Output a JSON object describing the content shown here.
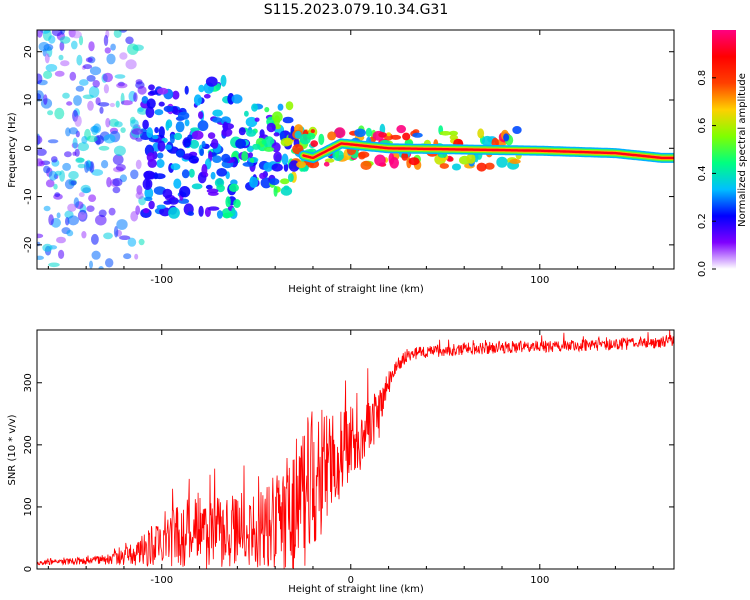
{
  "title": "S115.2023.079.10.34.G31",
  "chart_data": [
    {
      "type": "heatmap",
      "xlabel": "Height of straight line (km)",
      "ylabel": "Frequency (Hz)",
      "xlim": [
        -166,
        171
      ],
      "ylim": [
        -25,
        24.5
      ],
      "xticks": [
        -100,
        0,
        100
      ],
      "xtick_labels": [
        "-100",
        "",
        "100"
      ],
      "yticks": [
        -20,
        -10,
        0,
        10,
        20
      ],
      "ytick_labels": [
        "-20",
        "-10",
        "0",
        "10",
        "20"
      ],
      "grid": false,
      "colormap": [
        "#ffffff",
        "#7f00ff",
        "#0000ff",
        "#00bfff",
        "#00ff80",
        "#80ff00",
        "#ffd000",
        "#ff4000",
        "#ff0000",
        "#ff0080"
      ],
      "description_of_ridge": [
        {
          "x": -160,
          "freq": 0,
          "amp": 0.1
        },
        {
          "x": -100,
          "freq": 0,
          "amp": 0.3
        },
        {
          "x": -40,
          "freq": 0,
          "amp": 0.45
        },
        {
          "x": -20,
          "freq": -2,
          "amp": 0.8
        },
        {
          "x": -5,
          "freq": 1,
          "amp": 0.85
        },
        {
          "x": 20,
          "freq": 0,
          "amp": 0.9
        },
        {
          "x": 100,
          "freq": -0.5,
          "amp": 0.8
        },
        {
          "x": 140,
          "freq": -1,
          "amp": 0.9
        },
        {
          "x": 165,
          "freq": -2,
          "amp": 0.9
        }
      ]
    },
    {
      "type": "colorbar",
      "label": "Normalized spectral amplitude",
      "ticks": [
        0.0,
        0.2,
        0.4,
        0.6,
        0.8
      ],
      "tick_labels": [
        "0.0",
        "0.2",
        "0.4",
        "0.6",
        "0.8"
      ],
      "range": [
        0,
        1
      ]
    },
    {
      "type": "line",
      "xlabel": "Height of straight line (km)",
      "ylabel": "SNR (10 * v/v)",
      "xlim": [
        -166,
        171
      ],
      "ylim": [
        0,
        385
      ],
      "xticks": [
        -100,
        0,
        100
      ],
      "xtick_labels": [
        "-100",
        "0",
        "100"
      ],
      "yticks": [
        0,
        100,
        200,
        300
      ],
      "ytick_labels": [
        "0",
        "100",
        "200",
        "300"
      ],
      "grid": false,
      "series": [
        {
          "color": "#ff0000",
          "x": [
            -166,
            -150,
            -130,
            -120,
            -110,
            -100,
            -90,
            -80,
            -70,
            -60,
            -50,
            -40,
            -30,
            -25,
            -20,
            -15,
            -10,
            -5,
            0,
            5,
            10,
            15,
            20,
            25,
            30,
            40,
            50,
            60,
            80,
            100,
            120,
            140,
            160,
            171
          ],
          "y": [
            10,
            12,
            15,
            20,
            30,
            45,
            55,
            60,
            58,
            60,
            62,
            75,
            95,
            120,
            140,
            160,
            175,
            185,
            200,
            210,
            230,
            250,
            300,
            330,
            345,
            350,
            352,
            355,
            357,
            358,
            360,
            362,
            365,
            368
          ],
          "noise_amplitude": [
            4,
            5,
            8,
            14,
            25,
            45,
            55,
            65,
            60,
            55,
            60,
            80,
            110,
            120,
            120,
            100,
            80,
            70,
            60,
            55,
            50,
            40,
            20,
            12,
            10,
            10,
            10,
            10,
            10,
            10,
            10,
            10,
            10,
            10
          ]
        }
      ]
    }
  ]
}
